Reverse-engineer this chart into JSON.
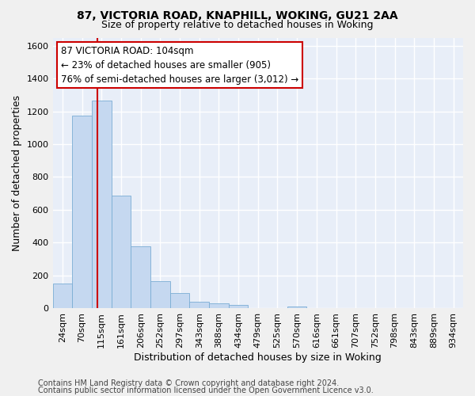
{
  "title1": "87, VICTORIA ROAD, KNAPHILL, WOKING, GU21 2AA",
  "title2": "Size of property relative to detached houses in Woking",
  "xlabel": "Distribution of detached houses by size in Woking",
  "ylabel": "Number of detached properties",
  "bar_color": "#c5d8f0",
  "bar_edge_color": "#7aadd4",
  "background_color": "#e8eef8",
  "grid_color": "#ffffff",
  "categories": [
    "24sqm",
    "70sqm",
    "115sqm",
    "161sqm",
    "206sqm",
    "252sqm",
    "297sqm",
    "343sqm",
    "388sqm",
    "434sqm",
    "479sqm",
    "525sqm",
    "570sqm",
    "616sqm",
    "661sqm",
    "707sqm",
    "752sqm",
    "798sqm",
    "843sqm",
    "889sqm",
    "934sqm"
  ],
  "values": [
    150,
    1175,
    1265,
    685,
    375,
    165,
    90,
    40,
    30,
    20,
    0,
    0,
    10,
    0,
    0,
    0,
    0,
    0,
    0,
    0,
    0
  ],
  "ylim": [
    0,
    1650
  ],
  "yticks": [
    0,
    200,
    400,
    600,
    800,
    1000,
    1200,
    1400,
    1600
  ],
  "vline_x": 1.77,
  "annotation_line1": "87 VICTORIA ROAD: 104sqm",
  "annotation_line2": "← 23% of detached houses are smaller (905)",
  "annotation_line3": "76% of semi-detached houses are larger (3,012) →",
  "annotation_box_color": "#ffffff",
  "annotation_box_edge": "#cc0000",
  "vline_color": "#cc0000",
  "footer1": "Contains HM Land Registry data © Crown copyright and database right 2024.",
  "footer2": "Contains public sector information licensed under the Open Government Licence v3.0.",
  "title_fontsize": 10,
  "subtitle_fontsize": 9,
  "axis_label_fontsize": 9,
  "tick_fontsize": 8,
  "annotation_fontsize": 8.5,
  "footer_fontsize": 7
}
